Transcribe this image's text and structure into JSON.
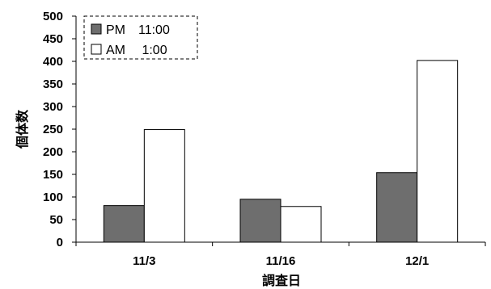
{
  "chart_data": {
    "type": "bar",
    "categories": [
      "11/3",
      "11/16",
      "12/1"
    ],
    "series": [
      {
        "name": "PM　11:00",
        "values": [
          81,
          95,
          154
        ],
        "color": "#6e6e6e"
      },
      {
        "name": "AM　 1:00",
        "values": [
          249,
          79,
          402
        ],
        "color": "#ffffff"
      }
    ],
    "title": "",
    "xlabel": "調査日",
    "ylabel": "個体数",
    "ylim": [
      0,
      500
    ],
    "yticks": [
      0,
      50,
      100,
      150,
      200,
      250,
      300,
      350,
      400,
      450,
      500
    ],
    "grid": false,
    "legend_position": "top-left"
  }
}
